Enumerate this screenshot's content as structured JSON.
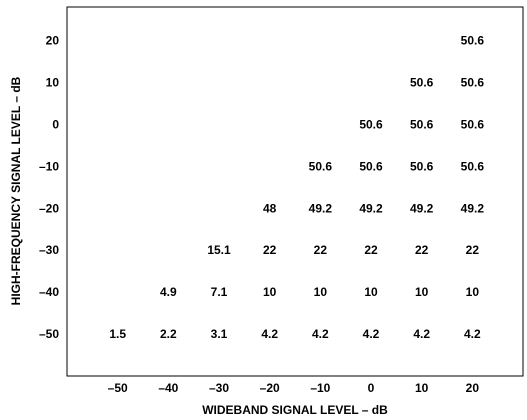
{
  "chart_data": {
    "type": "table",
    "title": "",
    "xlabel": "WIDEBAND SIGNAL LEVEL – dB",
    "ylabel": "HIGH-FREQUENCY SIGNAL LEVEL – dB",
    "x": [
      -50,
      -40,
      -30,
      -20,
      -10,
      0,
      10,
      20
    ],
    "y": [
      20,
      10,
      0,
      -10,
      -20,
      -30,
      -40,
      -50
    ],
    "x_tick_labels": [
      "–50",
      "–40",
      "–30",
      "–20",
      "–10",
      "0",
      "10",
      "20"
    ],
    "y_tick_labels": [
      "20",
      "10",
      "0",
      "–10",
      "–20",
      "–30",
      "–40",
      "–50"
    ],
    "xlim": [
      -60,
      30
    ],
    "ylim": [
      -60,
      28
    ],
    "grid": false,
    "cells": [
      {
        "x": 20,
        "y": 20,
        "value": "50.6"
      },
      {
        "x": 10,
        "y": 10,
        "value": "50.6"
      },
      {
        "x": 20,
        "y": 10,
        "value": "50.6"
      },
      {
        "x": 0,
        "y": 0,
        "value": "50.6"
      },
      {
        "x": 10,
        "y": 0,
        "value": "50.6"
      },
      {
        "x": 20,
        "y": 0,
        "value": "50.6"
      },
      {
        "x": -10,
        "y": -10,
        "value": "50.6"
      },
      {
        "x": 0,
        "y": -10,
        "value": "50.6"
      },
      {
        "x": 10,
        "y": -10,
        "value": "50.6"
      },
      {
        "x": 20,
        "y": -10,
        "value": "50.6"
      },
      {
        "x": -20,
        "y": -20,
        "value": "48"
      },
      {
        "x": -10,
        "y": -20,
        "value": "49.2"
      },
      {
        "x": 0,
        "y": -20,
        "value": "49.2"
      },
      {
        "x": 10,
        "y": -20,
        "value": "49.2"
      },
      {
        "x": 20,
        "y": -20,
        "value": "49.2"
      },
      {
        "x": -30,
        "y": -30,
        "value": "15.1"
      },
      {
        "x": -20,
        "y": -30,
        "value": "22"
      },
      {
        "x": -10,
        "y": -30,
        "value": "22"
      },
      {
        "x": 0,
        "y": -30,
        "value": "22"
      },
      {
        "x": 10,
        "y": -30,
        "value": "22"
      },
      {
        "x": 20,
        "y": -30,
        "value": "22"
      },
      {
        "x": -40,
        "y": -40,
        "value": "4.9"
      },
      {
        "x": -30,
        "y": -40,
        "value": "7.1"
      },
      {
        "x": -20,
        "y": -40,
        "value": "10"
      },
      {
        "x": -10,
        "y": -40,
        "value": "10"
      },
      {
        "x": 0,
        "y": -40,
        "value": "10"
      },
      {
        "x": 10,
        "y": -40,
        "value": "10"
      },
      {
        "x": 20,
        "y": -40,
        "value": "10"
      },
      {
        "x": -50,
        "y": -50,
        "value": "1.5"
      },
      {
        "x": -40,
        "y": -50,
        "value": "2.2"
      },
      {
        "x": -30,
        "y": -50,
        "value": "3.1"
      },
      {
        "x": -20,
        "y": -50,
        "value": "4.2"
      },
      {
        "x": -10,
        "y": -50,
        "value": "4.2"
      },
      {
        "x": 0,
        "y": -50,
        "value": "4.2"
      },
      {
        "x": 10,
        "y": -50,
        "value": "4.2"
      },
      {
        "x": 20,
        "y": -50,
        "value": "4.2"
      }
    ]
  }
}
